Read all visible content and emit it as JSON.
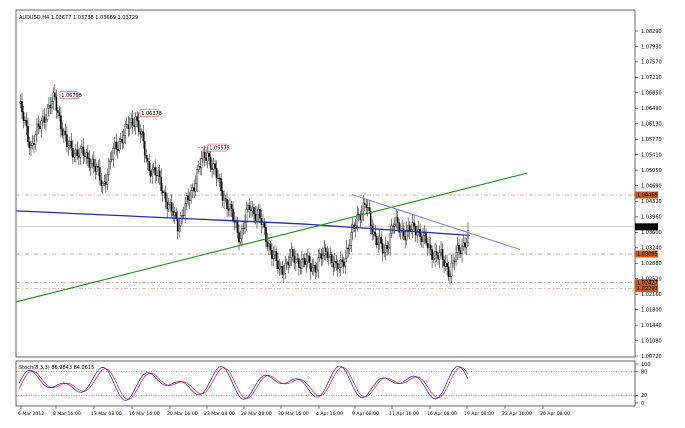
{
  "chart_data": {
    "type": "candlestick",
    "title": "AUDUSD,H4  1.03677 1.03738 1.03669 1.03729",
    "ylim": [
      1.0072,
      1.0834
    ],
    "price_ticks": [
      "1.08290",
      "1.07930",
      "1.07570",
      "1.07210",
      "1.06850",
      "1.06490",
      "1.06130",
      "1.05770",
      "1.05410",
      "1.05050",
      "1.04690",
      "1.04320",
      "1.03960",
      "1.03600",
      "1.03240",
      "1.02880",
      "1.02520",
      "1.02160",
      "1.01800",
      "1.01440",
      "1.01080",
      "1.00720"
    ],
    "price_tick_values": [
      1.0829,
      1.0793,
      1.0757,
      1.0721,
      1.0685,
      1.0649,
      1.0613,
      1.0577,
      1.0541,
      1.0505,
      1.0469,
      1.0432,
      1.0396,
      1.036,
      1.0324,
      1.0288,
      1.0252,
      1.0216,
      1.018,
      1.0144,
      1.0108,
      1.0072
    ],
    "x_ticks": [
      "6 Mar 2012",
      "8 Mar 16:00",
      "13 Mar 08:00",
      "16 Mar 16:00",
      "20 Mar 16:00",
      "23 Mar 08:00",
      "28 Mar 08:00",
      "30 Mar 16:00",
      "4 Apr 16:00",
      "9 Apr 08:00",
      "11 Apr 16:00",
      "16 Apr 08:00",
      "19 Apr 08:00",
      "23 Apr 16:00",
      "26 Apr 08:00"
    ],
    "current_price": {
      "label": "1.03729",
      "value": 1.03729
    },
    "peak_labels": [
      {
        "label": "1.06798",
        "value": 1.06798
      },
      {
        "label": "1.06378",
        "value": 1.06378
      },
      {
        "label": "1.05575",
        "value": 1.05575
      }
    ],
    "level_labels": [
      {
        "label": "1.04469",
        "value": 1.04469
      },
      {
        "label": "1.03095",
        "value": 1.03095
      },
      {
        "label": "1.02427",
        "value": 1.02427
      },
      {
        "label": "1.02292",
        "value": 1.02292
      }
    ],
    "oscillator": {
      "title": "Stoch(8,3,3) 86.9843 84.0615",
      "ylim": [
        0,
        100
      ],
      "ticks": [
        "100",
        "80",
        "20",
        "0"
      ],
      "tick_values": [
        100,
        80,
        20,
        0
      ]
    },
    "colors": {
      "trendline_green": "#1e8c1e",
      "moving_average": "#1f2fae",
      "downtrend_line": "#7f7fe0",
      "level_line": "#c8825a",
      "level_label_bg": "#c85a1e",
      "peak_label_border": "#e03030",
      "stoch_main": "#2020c8",
      "stoch_signal": "#e02020"
    }
  }
}
